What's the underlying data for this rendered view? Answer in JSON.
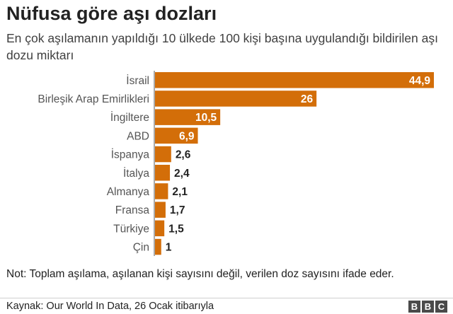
{
  "header": {
    "title": "Nüfusa göre aşı dozları",
    "subtitle": "En çok aşılamanın yapıldığı 10 ülkede 100 kişi başına uygulandığı bildirilen aşı dozu miktarı"
  },
  "chart_data": {
    "type": "bar",
    "orientation": "horizontal",
    "title": "Nüfusa göre aşı dozları",
    "categories": [
      "İsrail",
      "Birleşik Arap Emirlikleri",
      "İngiltere",
      "ABD",
      "İspanya",
      "İtalya",
      "Almanya",
      "Fransa",
      "Türkiye",
      "Çin"
    ],
    "values": [
      44.9,
      26,
      10.5,
      6.9,
      2.6,
      2.4,
      2.1,
      1.7,
      1.5,
      1
    ],
    "value_labels": [
      "44,9",
      "26",
      "10,5",
      "6,9",
      "2,6",
      "2,4",
      "2,1",
      "1,7",
      "1,5",
      "1"
    ],
    "bar_color": "#d36e09",
    "xlim": [
      0,
      44.9
    ],
    "xlabel": "",
    "ylabel": "",
    "grid": false,
    "legend": "none"
  },
  "footer": {
    "note": "Not: Toplam aşılama, aşılanan kişi sayısını değil, verilen doz sayısını ifade eder.",
    "source": "Kaynak: Our World In Data, 26 Ocak itibarıyla",
    "logo_letters": [
      "B",
      "B",
      "C"
    ]
  }
}
